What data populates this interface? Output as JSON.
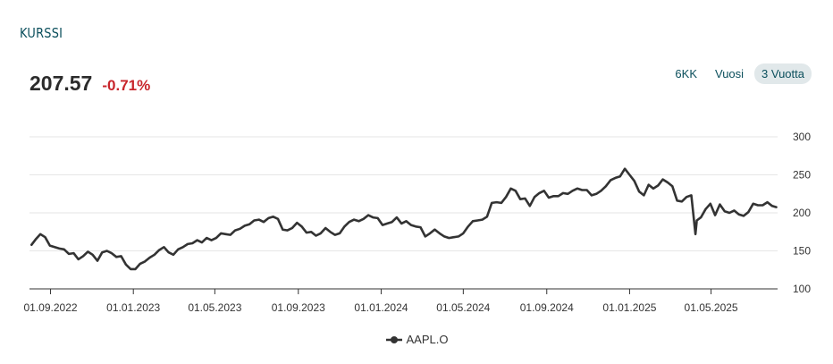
{
  "header": {
    "title": "KURSSI"
  },
  "quote": {
    "price": "207.57",
    "change": "-0.71%",
    "change_color": "#c8262c"
  },
  "range": {
    "options": [
      {
        "label": "6KK",
        "active": false
      },
      {
        "label": "Vuosi",
        "active": false
      },
      {
        "label": "3 Vuotta",
        "active": true
      }
    ]
  },
  "chart_data": {
    "type": "line",
    "title": "",
    "xlabel": "",
    "ylabel": "",
    "ylim": [
      100,
      300
    ],
    "y_ticks": [
      100,
      150,
      200,
      250,
      300
    ],
    "x_ticks": [
      "01.09.2022",
      "01.01.2023",
      "01.05.2023",
      "01.09.2023",
      "01.01.2024",
      "01.05.2024",
      "01.09.2024",
      "01.01.2025",
      "01.05.2025"
    ],
    "x_range": [
      "2022-08-01",
      "2025-08-07"
    ],
    "grid": true,
    "legend_position": "bottom",
    "series": [
      {
        "name": "AAPL.O",
        "color": "#333333",
        "points": [
          [
            "2022-08-04",
            158
          ],
          [
            "2022-08-10",
            165
          ],
          [
            "2022-08-17",
            172
          ],
          [
            "2022-08-24",
            168
          ],
          [
            "2022-08-31",
            157
          ],
          [
            "2022-09-07",
            155
          ],
          [
            "2022-09-14",
            153
          ],
          [
            "2022-09-21",
            152
          ],
          [
            "2022-09-28",
            146
          ],
          [
            "2022-10-05",
            147
          ],
          [
            "2022-10-12",
            139
          ],
          [
            "2022-10-19",
            143
          ],
          [
            "2022-10-26",
            149
          ],
          [
            "2022-11-02",
            145
          ],
          [
            "2022-11-09",
            137
          ],
          [
            "2022-11-16",
            148
          ],
          [
            "2022-11-23",
            150
          ],
          [
            "2022-11-30",
            147
          ],
          [
            "2022-12-07",
            142
          ],
          [
            "2022-12-14",
            143
          ],
          [
            "2022-12-21",
            132
          ],
          [
            "2022-12-28",
            126
          ],
          [
            "2023-01-04",
            126
          ],
          [
            "2023-01-11",
            133
          ],
          [
            "2023-01-18",
            136
          ],
          [
            "2023-01-25",
            141
          ],
          [
            "2023-02-01",
            145
          ],
          [
            "2023-02-08",
            151
          ],
          [
            "2023-02-15",
            155
          ],
          [
            "2023-02-22",
            148
          ],
          [
            "2023-03-01",
            145
          ],
          [
            "2023-03-08",
            152
          ],
          [
            "2023-03-15",
            155
          ],
          [
            "2023-03-22",
            159
          ],
          [
            "2023-03-29",
            160
          ],
          [
            "2023-04-05",
            164
          ],
          [
            "2023-04-12",
            161
          ],
          [
            "2023-04-19",
            167
          ],
          [
            "2023-04-26",
            164
          ],
          [
            "2023-05-03",
            167
          ],
          [
            "2023-05-10",
            173
          ],
          [
            "2023-05-17",
            172
          ],
          [
            "2023-05-24",
            171
          ],
          [
            "2023-05-31",
            177
          ],
          [
            "2023-06-07",
            179
          ],
          [
            "2023-06-14",
            183
          ],
          [
            "2023-06-21",
            185
          ],
          [
            "2023-06-28",
            190
          ],
          [
            "2023-07-05",
            191
          ],
          [
            "2023-07-12",
            188
          ],
          [
            "2023-07-19",
            193
          ],
          [
            "2023-07-26",
            195
          ],
          [
            "2023-08-02",
            192
          ],
          [
            "2023-08-09",
            178
          ],
          [
            "2023-08-16",
            177
          ],
          [
            "2023-08-23",
            180
          ],
          [
            "2023-08-30",
            187
          ],
          [
            "2023-09-06",
            182
          ],
          [
            "2023-09-13",
            174
          ],
          [
            "2023-09-20",
            175
          ],
          [
            "2023-09-27",
            170
          ],
          [
            "2023-10-04",
            173
          ],
          [
            "2023-10-11",
            180
          ],
          [
            "2023-10-18",
            175
          ],
          [
            "2023-10-25",
            171
          ],
          [
            "2023-11-01",
            173
          ],
          [
            "2023-11-08",
            182
          ],
          [
            "2023-11-15",
            188
          ],
          [
            "2023-11-22",
            191
          ],
          [
            "2023-11-29",
            189
          ],
          [
            "2023-12-06",
            192
          ],
          [
            "2023-12-13",
            197
          ],
          [
            "2023-12-20",
            194
          ],
          [
            "2023-12-27",
            193
          ],
          [
            "2024-01-03",
            184
          ],
          [
            "2024-01-10",
            186
          ],
          [
            "2024-01-17",
            188
          ],
          [
            "2024-01-24",
            194
          ],
          [
            "2024-01-31",
            186
          ],
          [
            "2024-02-07",
            189
          ],
          [
            "2024-02-14",
            184
          ],
          [
            "2024-02-21",
            182
          ],
          [
            "2024-02-28",
            181
          ],
          [
            "2024-03-06",
            169
          ],
          [
            "2024-03-13",
            173
          ],
          [
            "2024-03-20",
            178
          ],
          [
            "2024-03-27",
            173
          ],
          [
            "2024-04-03",
            169
          ],
          [
            "2024-04-10",
            167
          ],
          [
            "2024-04-17",
            168
          ],
          [
            "2024-04-24",
            169
          ],
          [
            "2024-05-01",
            173
          ],
          [
            "2024-05-08",
            182
          ],
          [
            "2024-05-15",
            189
          ],
          [
            "2024-05-22",
            190
          ],
          [
            "2024-05-29",
            191
          ],
          [
            "2024-06-05",
            195
          ],
          [
            "2024-06-12",
            213
          ],
          [
            "2024-06-19",
            214
          ],
          [
            "2024-06-26",
            213
          ],
          [
            "2024-07-03",
            221
          ],
          [
            "2024-07-10",
            232
          ],
          [
            "2024-07-17",
            229
          ],
          [
            "2024-07-24",
            218
          ],
          [
            "2024-07-31",
            219
          ],
          [
            "2024-08-07",
            209
          ],
          [
            "2024-08-14",
            221
          ],
          [
            "2024-08-21",
            226
          ],
          [
            "2024-08-28",
            229
          ],
          [
            "2024-09-04",
            220
          ],
          [
            "2024-09-11",
            222
          ],
          [
            "2024-09-18",
            222
          ],
          [
            "2024-09-25",
            226
          ],
          [
            "2024-10-02",
            225
          ],
          [
            "2024-10-09",
            229
          ],
          [
            "2024-10-16",
            232
          ],
          [
            "2024-10-23",
            230
          ],
          [
            "2024-10-30",
            230
          ],
          [
            "2024-11-06",
            223
          ],
          [
            "2024-11-13",
            225
          ],
          [
            "2024-11-20",
            229
          ],
          [
            "2024-11-27",
            235
          ],
          [
            "2024-12-04",
            243
          ],
          [
            "2024-12-11",
            246
          ],
          [
            "2024-12-18",
            248
          ],
          [
            "2024-12-25",
            258
          ],
          [
            "2025-01-01",
            250
          ],
          [
            "2025-01-08",
            242
          ],
          [
            "2025-01-15",
            228
          ],
          [
            "2025-01-22",
            223
          ],
          [
            "2025-01-29",
            237
          ],
          [
            "2025-02-05",
            232
          ],
          [
            "2025-02-12",
            236
          ],
          [
            "2025-02-19",
            244
          ],
          [
            "2025-02-26",
            240
          ],
          [
            "2025-03-05",
            235
          ],
          [
            "2025-03-12",
            216
          ],
          [
            "2025-03-19",
            215
          ],
          [
            "2025-03-26",
            221
          ],
          [
            "2025-04-02",
            223
          ],
          [
            "2025-04-08",
            172
          ],
          [
            "2025-04-10",
            190
          ],
          [
            "2025-04-16",
            194
          ],
          [
            "2025-04-23",
            205
          ],
          [
            "2025-04-30",
            212
          ],
          [
            "2025-05-07",
            197
          ],
          [
            "2025-05-14",
            211
          ],
          [
            "2025-05-21",
            202
          ],
          [
            "2025-05-28",
            200
          ],
          [
            "2025-06-04",
            203
          ],
          [
            "2025-06-11",
            198
          ],
          [
            "2025-06-18",
            196
          ],
          [
            "2025-06-25",
            201
          ],
          [
            "2025-07-02",
            212
          ],
          [
            "2025-07-09",
            210
          ],
          [
            "2025-07-16",
            210
          ],
          [
            "2025-07-23",
            214
          ],
          [
            "2025-07-30",
            209
          ],
          [
            "2025-08-05",
            207.57
          ]
        ]
      }
    ]
  }
}
